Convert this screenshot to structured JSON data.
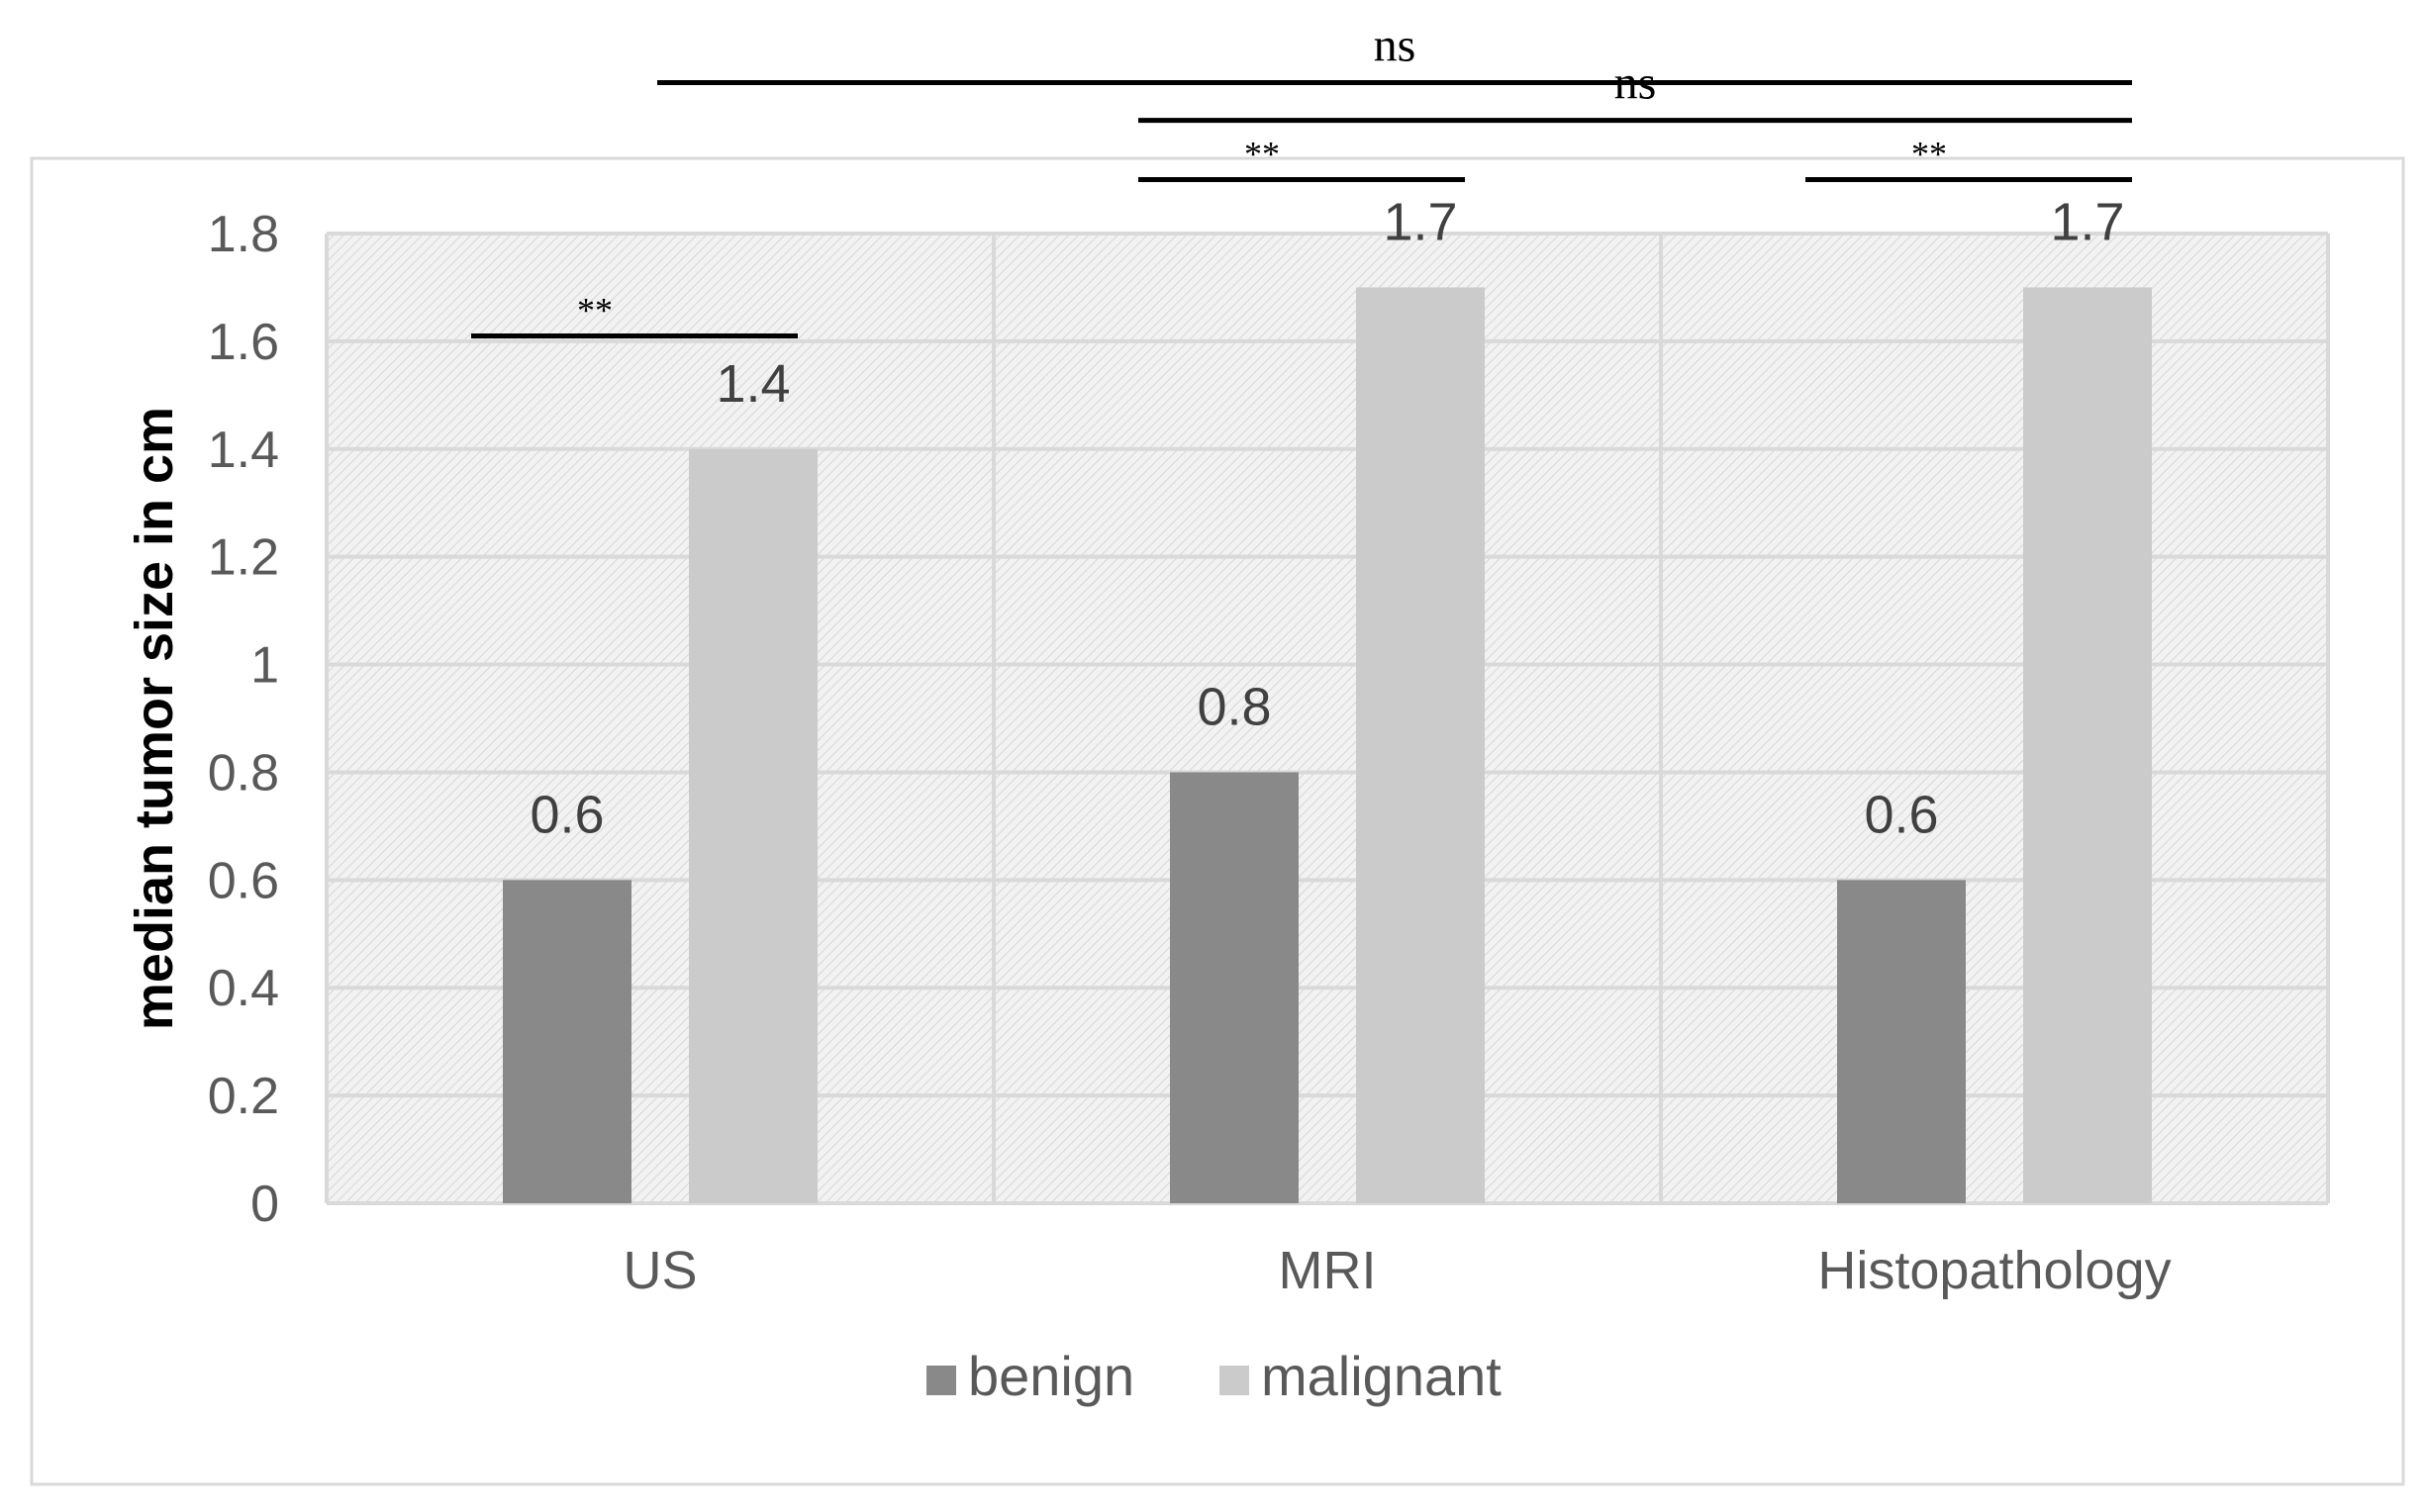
{
  "chart_data": {
    "type": "bar",
    "categories": [
      "US",
      "MRI",
      "Histopathology"
    ],
    "series": [
      {
        "name": "benign",
        "values": [
          0.6,
          0.8,
          0.6
        ],
        "color": "#898989"
      },
      {
        "name": "malignant",
        "values": [
          1.4,
          1.7,
          1.7
        ],
        "color": "#cbcbcb"
      }
    ],
    "data_labels": [
      [
        "0.6",
        "0.8",
        "0.6"
      ],
      [
        "1.4",
        "1.7",
        "1.7"
      ]
    ],
    "yticks": [
      "0",
      "0.2",
      "0.4",
      "0.6",
      "0.8",
      "1",
      "1.2",
      "1.4",
      "1.6",
      "1.8"
    ],
    "ylabel": "median tumor size in cm",
    "xlabel": "",
    "title": "",
    "ylim": [
      0,
      1.8
    ],
    "grid": true,
    "legend_position": "bottom",
    "significance": [
      {
        "label": "**",
        "from_category": "US",
        "from_series": "benign",
        "to_category": "US",
        "to_series": "malignant",
        "level_value": 1.61
      },
      {
        "label": "**",
        "from_category": "MRI",
        "from_series": "benign",
        "to_category": "MRI",
        "to_series": "malignant",
        "level_value": 1.9
      },
      {
        "label": "**",
        "from_category": "Histopathology",
        "from_series": "benign",
        "to_category": "Histopathology",
        "to_series": "malignant",
        "level_value": 1.9
      },
      {
        "label": "ns",
        "from_category": "MRI",
        "from_series": "benign",
        "to_category": "Histopathology",
        "to_series": "malignant",
        "level_value": 2.01
      },
      {
        "label": "ns",
        "from_category": "US",
        "from_series": "malignant",
        "to_category": "Histopathology",
        "to_series": "malignant",
        "level_value": 2.08
      }
    ]
  }
}
